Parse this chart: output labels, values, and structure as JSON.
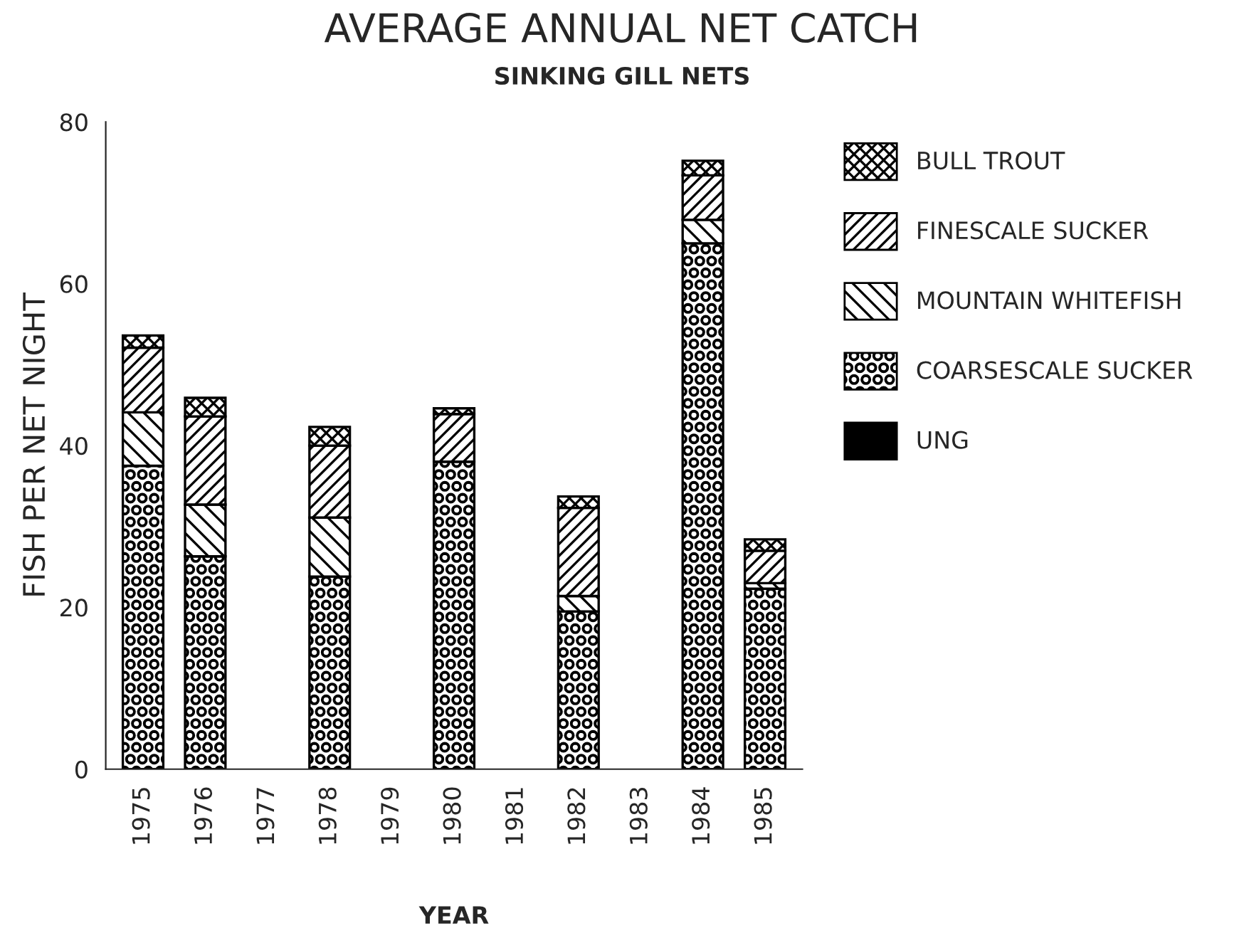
{
  "chart_data": {
    "type": "bar",
    "title": "AVERAGE ANNUAL NET CATCH",
    "subtitle": "SINKING GILL NETS",
    "xlabel": "YEAR",
    "ylabel": "FISH PER NET NIGHT",
    "categories": [
      "1975",
      "1976",
      "1977",
      "1978",
      "1979",
      "1980",
      "1981",
      "1982",
      "1983",
      "1984",
      "1985"
    ],
    "stacked": true,
    "ylim": [
      0,
      80
    ],
    "yticks": [
      0,
      20,
      40,
      60,
      80
    ],
    "grid": false,
    "legend": "right",
    "series": [
      {
        "name": "UNG",
        "color": "#000000",
        "values": [
          null,
          null,
          null,
          null,
          null,
          null,
          null,
          null,
          null,
          null,
          null
        ]
      },
      {
        "name": "COARSESCALE SUCKER",
        "color": "#000000",
        "values": [
          37.5,
          26.3,
          null,
          23.8,
          null,
          38.0,
          null,
          19.5,
          null,
          65.0,
          22.3
        ]
      },
      {
        "name": "MOUNTAIN WHITEFISH",
        "color": "#000000",
        "values": [
          6.6,
          6.4,
          null,
          7.3,
          null,
          null,
          null,
          1.9,
          null,
          2.9,
          0.7
        ]
      },
      {
        "name": "FINESCALE SUCKER",
        "color": "#000000",
        "values": [
          8.0,
          10.9,
          null,
          8.9,
          null,
          5.9,
          null,
          10.9,
          null,
          5.5,
          4.0
        ]
      },
      {
        "name": "BULL TROUT",
        "color": "#000000",
        "values": [
          1.5,
          2.3,
          null,
          2.3,
          null,
          0.7,
          null,
          1.4,
          null,
          1.8,
          1.4
        ]
      }
    ]
  }
}
